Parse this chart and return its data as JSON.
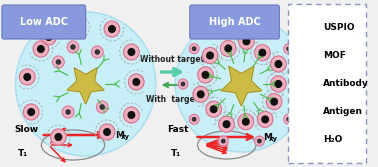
{
  "bg_color": "#f0f0f0",
  "left_title": "Low ADC",
  "right_title": "High ADC",
  "title_bg": "#8899dd",
  "circle_color": "#c8eef8",
  "circle_edge": "#aaddee",
  "mof_color": "#ccbb44",
  "mof_edge": "#998822",
  "uspio_fill": "#f0b0c0",
  "uspio_edge": "#cc6688",
  "uspio_center": "#111111",
  "antibody_color": "#44bb44",
  "antigen_color": "#aaddaa",
  "antigen_spike": "#55aa55",
  "water_fill": "#f0b0c8",
  "water_edge": "#cc6688",
  "chain_color": "#999999",
  "arrow_green1": "#55ccaa",
  "arrow_green2": "#44aa55",
  "arrow_red": "#ee2222",
  "text_color": "#222222",
  "legend_border": "#8899bb",
  "without_target": "Without target",
  "with_target": "With  target",
  "slow_text": "Slow",
  "fast_text": "Fast",
  "t1_text": "T₁",
  "mxy_text": "M",
  "mxy_sub": "xy",
  "legend_items": [
    "USPIO",
    "MOF",
    "Antibody",
    "Antigen",
    "H₂O"
  ]
}
